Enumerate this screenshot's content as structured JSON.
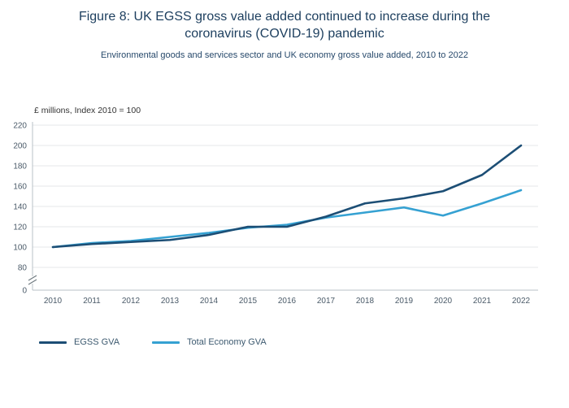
{
  "header": {
    "title_line1": "Figure 8: UK EGSS gross value added continued to increase during the",
    "title_line2": "coronavirus (COVID-19) pandemic",
    "subtitle": "Environmental goods and services sector and UK economy gross value added, 2010 to 2022"
  },
  "chart_data": {
    "type": "line",
    "title": "Figure 8: UK EGSS gross value added continued to increase during the coronavirus (COVID-19) pandemic",
    "subtitle": "Environmental goods and services sector and UK economy gross value added, 2010 to 2022",
    "unit_label": "£ millions, Index 2010 = 100",
    "categories": [
      "2010",
      "2011",
      "2012",
      "2013",
      "2014",
      "2015",
      "2016",
      "2017",
      "2018",
      "2019",
      "2020",
      "2021",
      "2022"
    ],
    "series": [
      {
        "name": "EGSS GVA",
        "color": "#1c4e75",
        "values": [
          100,
          103,
          105,
          107,
          112,
          120,
          120,
          130,
          143,
          148,
          155,
          171,
          200
        ]
      },
      {
        "name": "Total Economy GVA",
        "color": "#35a1d2",
        "values": [
          100,
          104,
          106,
          110,
          114,
          119,
          122,
          129,
          134,
          139,
          131,
          143,
          156
        ]
      }
    ],
    "y_ticks": [
      220,
      200,
      180,
      160,
      140,
      120,
      100,
      80,
      0
    ],
    "ylim": [
      80,
      220
    ],
    "axis_break": true,
    "grid": true,
    "legend_position": "bottom-left"
  }
}
